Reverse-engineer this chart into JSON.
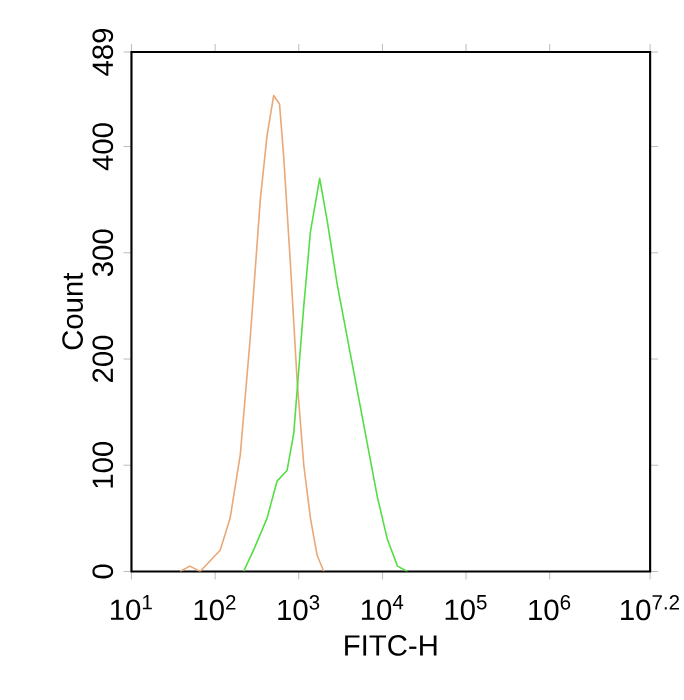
{
  "chart_data": {
    "type": "line",
    "xlabel": "FITC-H",
    "ylabel": "Count",
    "log": "x",
    "xlim": [
      10,
      15848932
    ],
    "ylim": [
      0,
      489
    ],
    "xticks": [
      {
        "value": 10,
        "label": "10$^{1}$"
      },
      {
        "value": 100,
        "label": "10$^{2}$"
      },
      {
        "value": 1000,
        "label": "10$^{3}$"
      },
      {
        "value": 10000,
        "label": "10$^{4}$"
      },
      {
        "value": 100000,
        "label": "10$^{5}$"
      },
      {
        "value": 1000000,
        "label": "10$^{6}$"
      },
      {
        "value": 15848932,
        "label": "10$^{7.2}$"
      }
    ],
    "yticks": [
      0,
      100,
      200,
      300,
      400,
      489
    ],
    "marker": "none",
    "line_style": "solid",
    "series": [
      {
        "color": "#e8a878",
        "x": [
          38,
          50,
          66,
          115,
          151,
          200,
          263,
          347,
          417,
          501,
          589,
          661,
          794,
          955,
          1148,
          1380,
          1660,
          1995
        ],
        "values": [
          0,
          5,
          0,
          20,
          50,
          110,
          220,
          350,
          410,
          448,
          440,
          390,
          290,
          180,
          100,
          50,
          15,
          0
        ]
      },
      {
        "color": "#55dd44",
        "x": [
          219,
          288,
          417,
          550,
          724,
          871,
          1148,
          1380,
          1778,
          2188,
          2884,
          3802,
          5012,
          6607,
          8710,
          11482,
          15136,
          19953
        ],
        "values": [
          0,
          20,
          50,
          85,
          95,
          130,
          250,
          320,
          370,
          330,
          270,
          220,
          170,
          120,
          70,
          30,
          5,
          0
        ]
      }
    ]
  }
}
